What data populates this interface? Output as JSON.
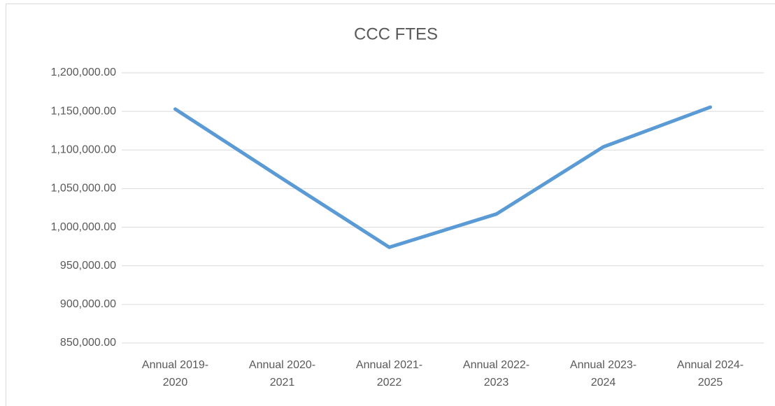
{
  "chart_data": {
    "type": "line",
    "title": "CCC FTES",
    "categories": [
      "Annual 2019-2020",
      "Annual 2020-2021",
      "Annual 2021-2022",
      "Annual 2022-2023",
      "Annual 2023-2024",
      "Annual 2024-2025"
    ],
    "series": [
      {
        "name": "FTES",
        "color": "#5b9bd5",
        "values": [
          1153000,
          1063000,
          974000,
          1017000,
          1104000,
          1155500
        ]
      }
    ],
    "ylim": [
      850000,
      1200000
    ],
    "yticks": [
      {
        "value": 850000,
        "label": "850,000.00"
      },
      {
        "value": 900000,
        "label": "900,000.00"
      },
      {
        "value": 950000,
        "label": "950,000.00"
      },
      {
        "value": 1000000,
        "label": "1,000,000.00"
      },
      {
        "value": 1050000,
        "label": "1,050,000.00"
      },
      {
        "value": 1100000,
        "label": "1,100,000.00"
      },
      {
        "value": 1150000,
        "label": "1,150,000.00"
      },
      {
        "value": 1200000,
        "label": "1,200,000.00"
      }
    ],
    "grid": true
  }
}
